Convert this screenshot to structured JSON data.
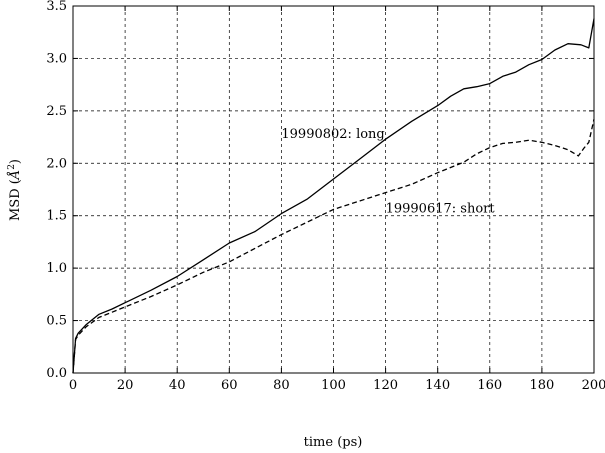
{
  "chart_data": {
    "type": "line",
    "title": "",
    "xlabel": "time (ps)",
    "ylabel_text": "MSD (",
    "ylabel_unit": "Å",
    "ylabel_sup": "2",
    "ylabel_close": ")",
    "xlim": [
      0,
      200
    ],
    "ylim": [
      0,
      3.5
    ],
    "xticks": [
      0,
      20,
      40,
      60,
      80,
      100,
      120,
      140,
      160,
      180,
      200
    ],
    "xtick_labels": [
      "0",
      "20",
      "40",
      "60",
      "80",
      "100",
      "120",
      "140",
      "160",
      "180",
      "200"
    ],
    "yticks": [
      0,
      0.5,
      1.0,
      1.5,
      2.0,
      2.5,
      3.0,
      3.5
    ],
    "ytick_labels": [
      "0.0",
      "0.5",
      "1.0",
      "1.5",
      "2.0",
      "2.5",
      "3.0",
      "3.5"
    ],
    "grid": true,
    "grid_style": "dashed",
    "series": [
      {
        "name": "19990802: long",
        "style": "solid",
        "x": [
          0,
          1,
          2,
          5,
          10,
          15,
          20,
          30,
          40,
          50,
          60,
          70,
          80,
          90,
          100,
          110,
          120,
          130,
          140,
          145,
          150,
          155,
          160,
          165,
          170,
          175,
          180,
          185,
          190,
          195,
          198,
          200
        ],
        "y": [
          0.0,
          0.33,
          0.38,
          0.46,
          0.56,
          0.61,
          0.67,
          0.79,
          0.92,
          1.08,
          1.24,
          1.35,
          1.52,
          1.66,
          1.85,
          2.04,
          2.23,
          2.4,
          2.55,
          2.64,
          2.71,
          2.73,
          2.76,
          2.83,
          2.87,
          2.94,
          2.99,
          3.08,
          3.14,
          3.13,
          3.1,
          3.38
        ]
      },
      {
        "name": "19990617: short",
        "style": "dashed",
        "x": [
          0,
          1,
          2,
          5,
          10,
          15,
          20,
          30,
          40,
          50,
          60,
          70,
          80,
          90,
          100,
          110,
          120,
          130,
          140,
          150,
          155,
          160,
          165,
          170,
          175,
          180,
          185,
          190,
          194,
          196,
          198,
          200
        ],
        "y": [
          0.0,
          0.32,
          0.36,
          0.44,
          0.53,
          0.58,
          0.63,
          0.73,
          0.84,
          0.96,
          1.06,
          1.19,
          1.32,
          1.44,
          1.56,
          1.64,
          1.72,
          1.8,
          1.91,
          2.01,
          2.09,
          2.15,
          2.19,
          2.2,
          2.22,
          2.2,
          2.17,
          2.13,
          2.07,
          2.14,
          2.2,
          2.42
        ]
      }
    ],
    "annotations": [
      {
        "text": "19990802: long",
        "x": 80,
        "y": 2.24
      },
      {
        "text": "19990617: short",
        "x": 120,
        "y": 1.53
      }
    ]
  }
}
